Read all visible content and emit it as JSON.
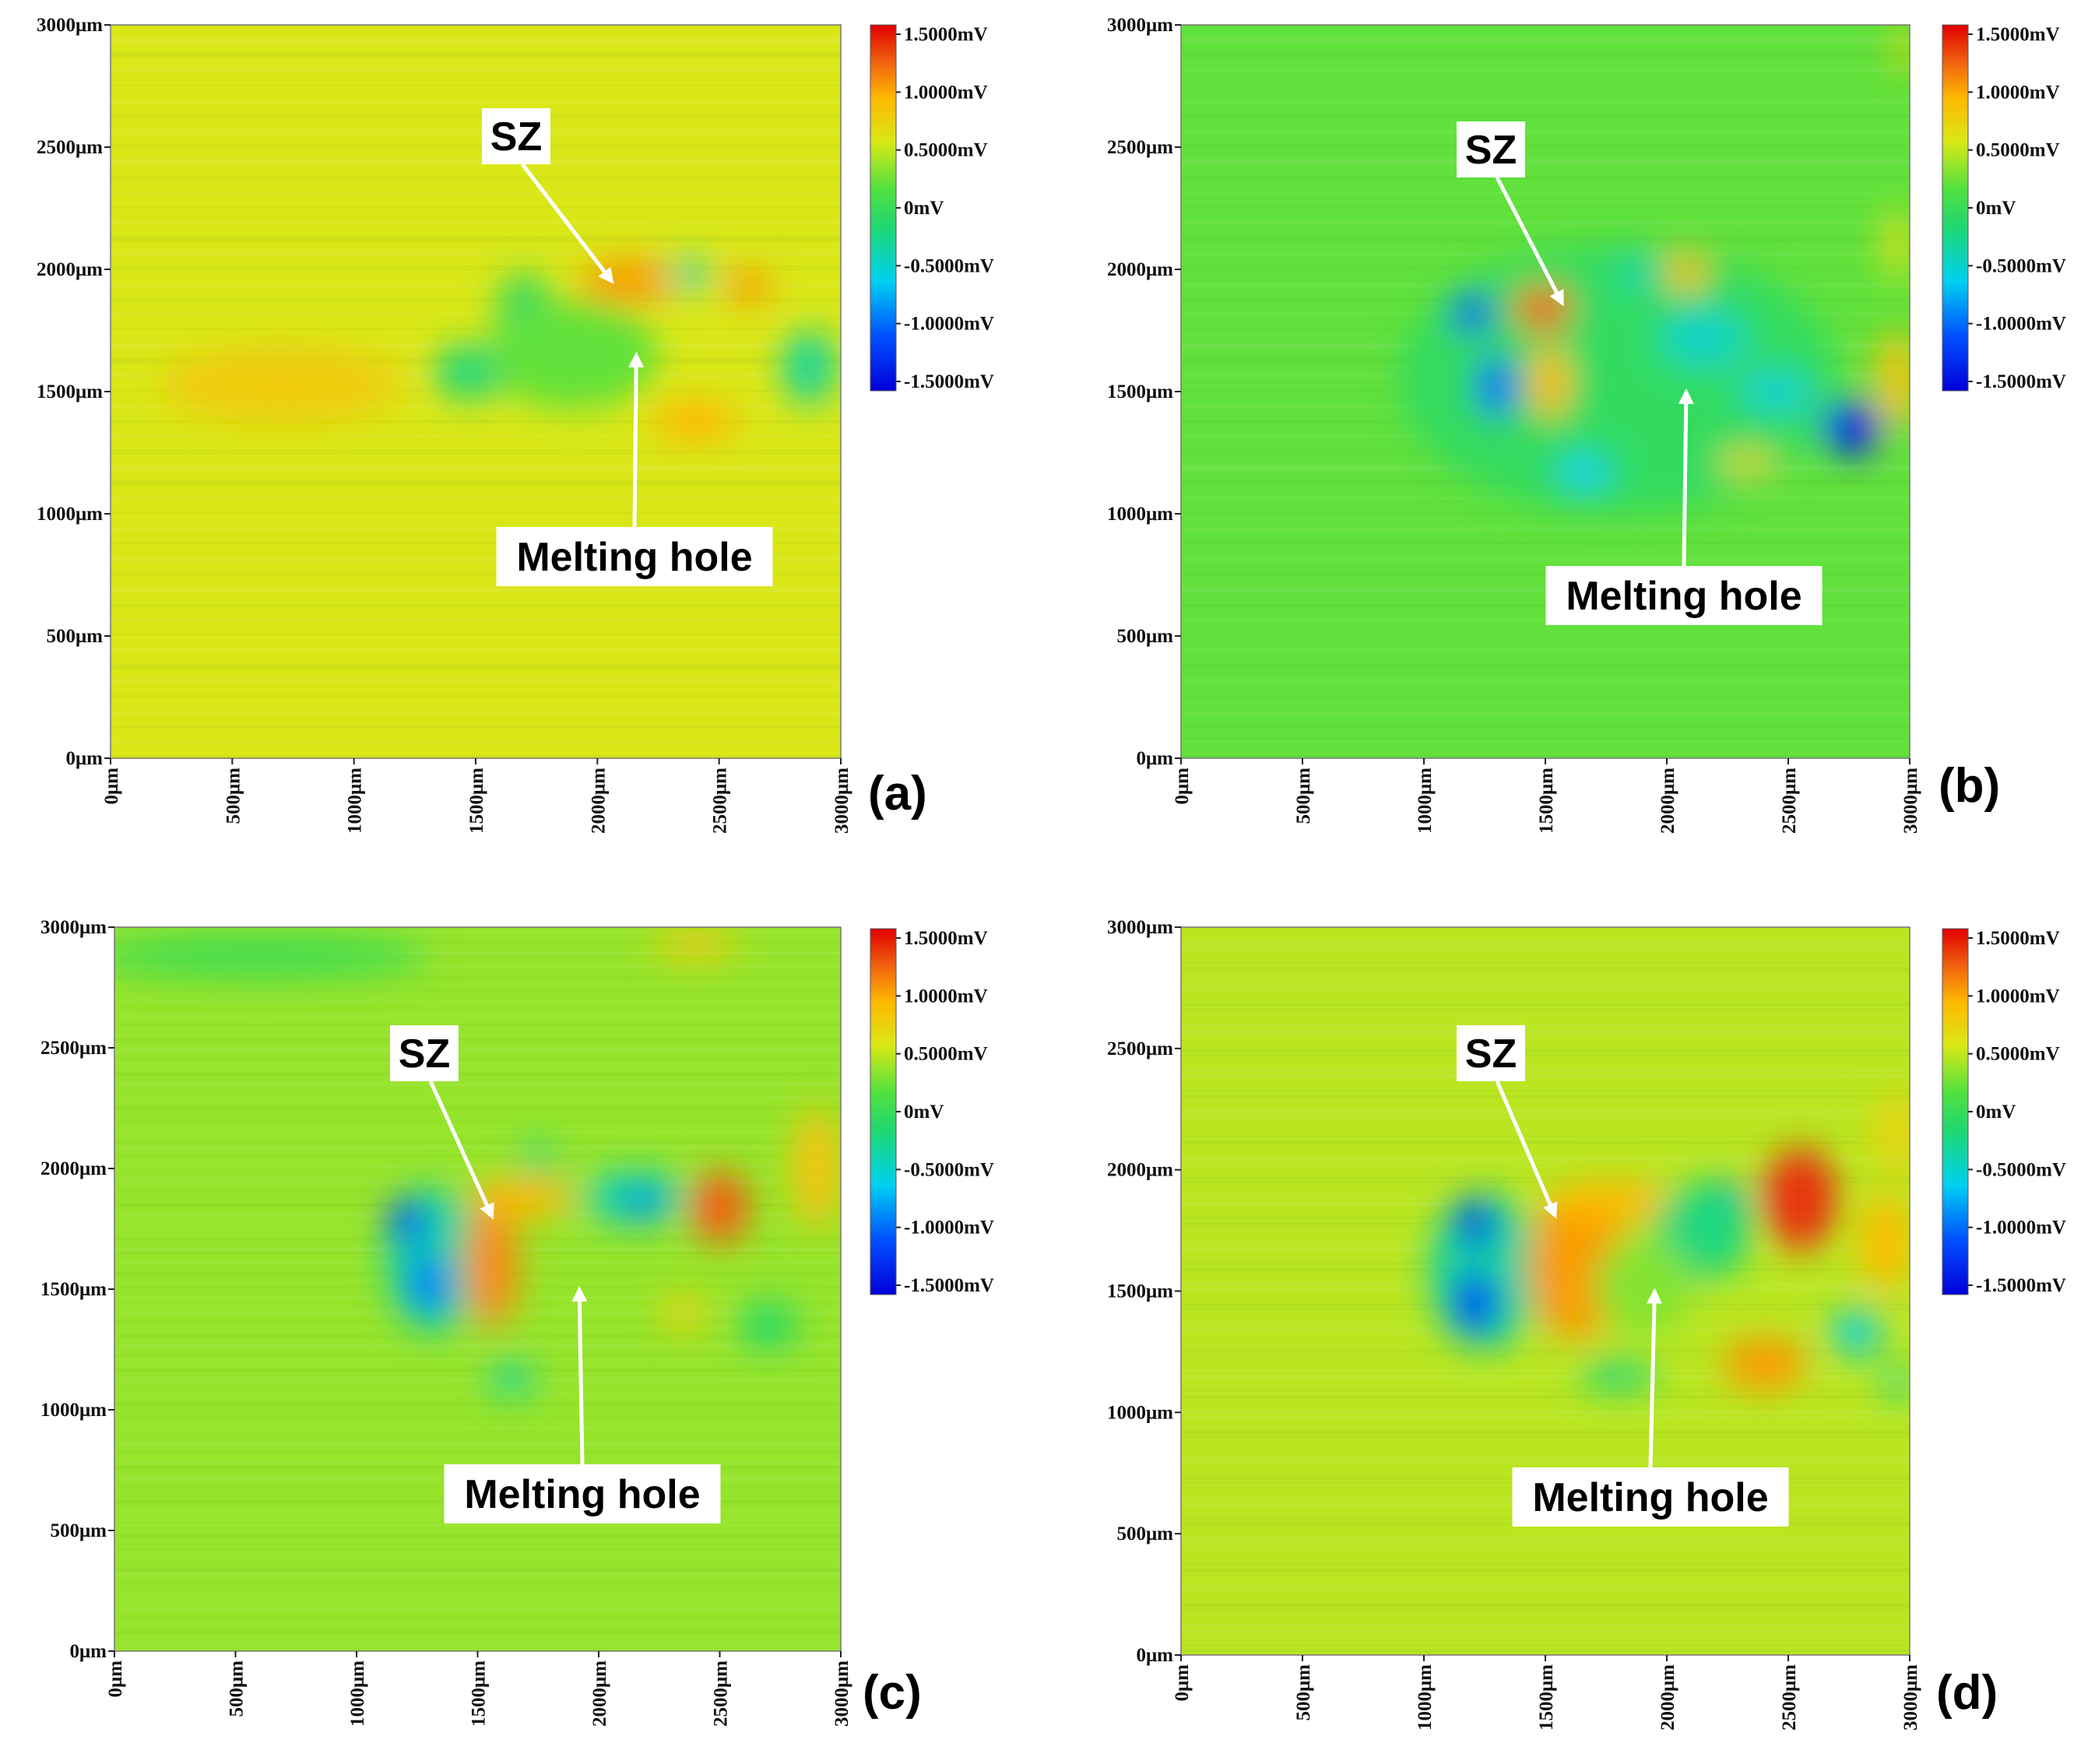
{
  "chart_data": [
    {
      "type": "heatmap",
      "panel_label": "(a)",
      "x_ticks": [
        "0μm",
        "500μm",
        "1000μm",
        "1500μm",
        "2000μm",
        "2500μm",
        "3000μm"
      ],
      "y_ticks": [
        "0μm",
        "500μm",
        "1000μm",
        "1500μm",
        "2000μm",
        "2500μm",
        "3000μm"
      ],
      "xlim": [
        0,
        3000
      ],
      "ylim": [
        0,
        3000
      ],
      "colorbar": {
        "ticks": [
          "1.5000mV",
          "1.0000mV",
          "0.5000mV",
          "0mV",
          "-0.5000mV",
          "-1.0000mV",
          "-1.5000mV"
        ],
        "range": [
          -1.5,
          1.5
        ]
      },
      "base_value": 0.55,
      "features": [
        {
          "x": 700,
          "y": 1530,
          "rx": 500,
          "ry": 160,
          "value": 0.75
        },
        {
          "x": 2120,
          "y": 1950,
          "rx": 190,
          "ry": 90,
          "value": 1.0
        },
        {
          "x": 2620,
          "y": 1930,
          "rx": 95,
          "ry": 70,
          "value": 1.0
        },
        {
          "x": 2400,
          "y": 1380,
          "rx": 180,
          "ry": 80,
          "value": 0.9
        },
        {
          "x": 1480,
          "y": 1580,
          "rx": 150,
          "ry": 110,
          "value": -0.2
        },
        {
          "x": 1700,
          "y": 1830,
          "rx": 110,
          "ry": 150,
          "value": -0.1
        },
        {
          "x": 2380,
          "y": 1980,
          "rx": 80,
          "ry": 60,
          "value": -0.45
        },
        {
          "x": 2870,
          "y": 1600,
          "rx": 110,
          "ry": 150,
          "value": -0.3
        },
        {
          "x": 1900,
          "y": 1650,
          "rx": 350,
          "ry": 220,
          "value": 0.2
        }
      ],
      "annotations": [
        {
          "text": "SZ",
          "arrow_to": [
            2060,
            1950
          ]
        },
        {
          "text": "Melting hole",
          "arrow_to": [
            2160,
            1650
          ]
        }
      ]
    },
    {
      "type": "heatmap",
      "panel_label": "(b)",
      "x_ticks": [
        "0μm",
        "500μm",
        "1000μm",
        "1500μm",
        "2000μm",
        "2500μm",
        "3000μm"
      ],
      "y_ticks": [
        "0μm",
        "500μm",
        "1000μm",
        "1500μm",
        "2000μm",
        "2500μm",
        "3000μm"
      ],
      "xlim": [
        0,
        3000
      ],
      "ylim": [
        0,
        3000
      ],
      "colorbar": {
        "ticks": [
          "1.5000mV",
          "1.0000mV",
          "0.5000mV",
          "0mV",
          "-0.5000mV",
          "-1.0000mV",
          "-1.5000mV"
        ],
        "range": [
          -1.5,
          1.5
        ]
      },
      "base_value": 0.2,
      "features": [
        {
          "x": 1800,
          "y": 1550,
          "rx": 900,
          "ry": 550,
          "value": -0.05
        },
        {
          "x": 1200,
          "y": 1820,
          "rx": 80,
          "ry": 80,
          "value": -1.2
        },
        {
          "x": 1300,
          "y": 1520,
          "rx": 80,
          "ry": 120,
          "value": -1.0
        },
        {
          "x": 1660,
          "y": 1170,
          "rx": 110,
          "ry": 70,
          "value": -0.6
        },
        {
          "x": 1490,
          "y": 1840,
          "rx": 120,
          "ry": 90,
          "value": 1.2
        },
        {
          "x": 1520,
          "y": 1540,
          "rx": 80,
          "ry": 150,
          "value": 0.9
        },
        {
          "x": 2080,
          "y": 1990,
          "rx": 80,
          "ry": 80,
          "value": 0.9
        },
        {
          "x": 1880,
          "y": 1980,
          "rx": 80,
          "ry": 60,
          "value": -0.4
        },
        {
          "x": 2150,
          "y": 1720,
          "rx": 180,
          "ry": 120,
          "value": -0.45
        },
        {
          "x": 2760,
          "y": 1350,
          "rx": 120,
          "ry": 110,
          "value": -1.3
        },
        {
          "x": 2450,
          "y": 1500,
          "rx": 150,
          "ry": 80,
          "value": -0.5
        },
        {
          "x": 2950,
          "y": 1550,
          "rx": 90,
          "ry": 200,
          "value": 0.8
        },
        {
          "x": 2330,
          "y": 1210,
          "rx": 120,
          "ry": 50,
          "value": 0.7
        },
        {
          "x": 2950,
          "y": 2100,
          "rx": 60,
          "ry": 150,
          "value": 0.6
        },
        {
          "x": 2980,
          "y": 2900,
          "rx": 40,
          "ry": 100,
          "value": 0.7
        }
      ],
      "annotations": [
        {
          "text": "SZ",
          "arrow_to": [
            1570,
            1860
          ]
        },
        {
          "text": "Melting hole",
          "arrow_to": [
            2080,
            1500
          ]
        }
      ]
    },
    {
      "type": "heatmap",
      "panel_label": "(c)",
      "x_ticks": [
        "0μm",
        "500μm",
        "1000μm",
        "1500μm",
        "2000μm",
        "2500μm",
        "3000μm"
      ],
      "y_ticks": [
        "0μm",
        "500μm",
        "1000μm",
        "1500μm",
        "2000μm",
        "2500μm",
        "3000μm"
      ],
      "xlim": [
        0,
        3000
      ],
      "ylim": [
        0,
        3000
      ],
      "colorbar": {
        "ticks": [
          "1.5000mV",
          "1.0000mV",
          "0.5000mV",
          "0mV",
          "-0.5000mV",
          "-1.0000mV",
          "-1.5000mV"
        ],
        "range": [
          -1.5,
          1.5
        ]
      },
      "base_value": 0.35,
      "features": [
        {
          "x": 600,
          "y": 2880,
          "rx": 700,
          "ry": 90,
          "value": 0.05
        },
        {
          "x": 1320,
          "y": 1620,
          "rx": 200,
          "ry": 300,
          "value": -0.3
        },
        {
          "x": 1210,
          "y": 1780,
          "rx": 80,
          "ry": 90,
          "value": -1.1
        },
        {
          "x": 1300,
          "y": 1520,
          "rx": 90,
          "ry": 120,
          "value": -0.9
        },
        {
          "x": 1560,
          "y": 1600,
          "rx": 110,
          "ry": 260,
          "value": 1.05
        },
        {
          "x": 1680,
          "y": 1880,
          "rx": 220,
          "ry": 80,
          "value": 0.9
        },
        {
          "x": 2150,
          "y": 1880,
          "rx": 220,
          "ry": 110,
          "value": -0.35
        },
        {
          "x": 2180,
          "y": 1860,
          "rx": 70,
          "ry": 50,
          "value": -1.0
        },
        {
          "x": 1750,
          "y": 2040,
          "rx": 80,
          "ry": 60,
          "value": -0.2
        },
        {
          "x": 2500,
          "y": 1840,
          "rx": 120,
          "ry": 150,
          "value": 1.2
        },
        {
          "x": 2700,
          "y": 1350,
          "rx": 120,
          "ry": 100,
          "value": -0.1
        },
        {
          "x": 1640,
          "y": 1130,
          "rx": 90,
          "ry": 70,
          "value": -0.3
        },
        {
          "x": 2900,
          "y": 2000,
          "rx": 100,
          "ry": 250,
          "value": 0.8
        },
        {
          "x": 2350,
          "y": 1400,
          "rx": 100,
          "ry": 70,
          "value": 0.7
        },
        {
          "x": 2400,
          "y": 2930,
          "rx": 180,
          "ry": 60,
          "value": 0.75
        }
      ],
      "annotations": [
        {
          "text": "SZ",
          "arrow_to": [
            1560,
            1800
          ]
        },
        {
          "text": "Melting hole",
          "arrow_to": [
            1920,
            1500
          ]
        }
      ]
    },
    {
      "type": "heatmap",
      "panel_label": "(d)",
      "x_ticks": [
        "0μm",
        "500μm",
        "1000μm",
        "1500μm",
        "2000μm",
        "2500μm",
        "3000μm"
      ],
      "y_ticks": [
        "0μm",
        "500μm",
        "1000μm",
        "1500μm",
        "2000μm",
        "2500μm",
        "3000μm"
      ],
      "xlim": [
        0,
        3000
      ],
      "ylim": [
        0,
        3000
      ],
      "colorbar": {
        "ticks": [
          "1.5000mV",
          "1.0000mV",
          "0.5000mV",
          "0mV",
          "-0.5000mV",
          "-1.0000mV",
          "-1.5000mV"
        ],
        "range": [
          -1.5,
          1.5
        ]
      },
      "base_value": 0.45,
      "features": [
        {
          "x": 1250,
          "y": 1580,
          "rx": 230,
          "ry": 320,
          "value": -0.3
        },
        {
          "x": 1210,
          "y": 1780,
          "rx": 80,
          "ry": 100,
          "value": -1.3
        },
        {
          "x": 1210,
          "y": 1450,
          "rx": 90,
          "ry": 130,
          "value": -1.2
        },
        {
          "x": 1630,
          "y": 1600,
          "rx": 200,
          "ry": 300,
          "value": 1.0
        },
        {
          "x": 1760,
          "y": 1870,
          "rx": 260,
          "ry": 80,
          "value": 0.9
        },
        {
          "x": 2240,
          "y": 1840,
          "rx": 100,
          "ry": 110,
          "value": -1.0
        },
        {
          "x": 2150,
          "y": 1750,
          "rx": 200,
          "ry": 200,
          "value": -0.2
        },
        {
          "x": 2550,
          "y": 1880,
          "rx": 150,
          "ry": 210,
          "value": 1.35
        },
        {
          "x": 2400,
          "y": 1200,
          "rx": 170,
          "ry": 110,
          "value": 1.0
        },
        {
          "x": 2780,
          "y": 1330,
          "rx": 100,
          "ry": 100,
          "value": -0.5
        },
        {
          "x": 2900,
          "y": 1700,
          "rx": 110,
          "ry": 200,
          "value": 0.85
        },
        {
          "x": 2950,
          "y": 2150,
          "rx": 100,
          "ry": 160,
          "value": 0.7
        },
        {
          "x": 1800,
          "y": 1150,
          "rx": 160,
          "ry": 60,
          "value": -0.2
        },
        {
          "x": 2950,
          "y": 1120,
          "rx": 60,
          "ry": 60,
          "value": -0.3
        },
        {
          "x": 1900,
          "y": 1520,
          "rx": 200,
          "ry": 200,
          "value": 0.3
        }
      ],
      "annotations": [
        {
          "text": "SZ",
          "arrow_to": [
            1540,
            1810
          ]
        },
        {
          "text": "Melting hole",
          "arrow_to": [
            1950,
            1500
          ]
        }
      ]
    }
  ]
}
